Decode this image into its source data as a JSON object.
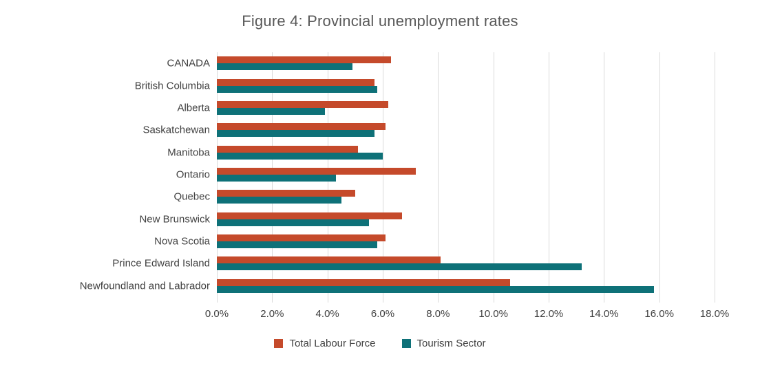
{
  "title": "Figure 4: Provincial unemployment rates",
  "chart_data": {
    "type": "bar",
    "orientation": "horizontal",
    "title": "Figure 4: Provincial unemployment rates",
    "categories": [
      "CANADA",
      "British Columbia",
      "Alberta",
      "Saskatchewan",
      "Manitoba",
      "Ontario",
      "Quebec",
      "New Brunswick",
      "Nova Scotia",
      "Prince Edward Island",
      "Newfoundland and Labrador"
    ],
    "series": [
      {
        "name": "Total Labour Force",
        "color": "#C54A2B",
        "values": [
          6.3,
          5.7,
          6.2,
          6.1,
          5.1,
          7.2,
          5.0,
          6.7,
          6.1,
          8.1,
          10.6
        ]
      },
      {
        "name": "Tourism Sector",
        "color": "#0E7178",
        "values": [
          4.9,
          5.8,
          3.9,
          5.7,
          6.0,
          4.3,
          4.5,
          5.5,
          5.8,
          13.2,
          15.8
        ]
      }
    ],
    "x_axis": {
      "min": 0,
      "max": 18,
      "tick_step": 2,
      "unit": "%",
      "tick_labels": [
        "0.0%",
        "2.0%",
        "4.0%",
        "6.0%",
        "8.0%",
        "10.0%",
        "12.0%",
        "14.0%",
        "16.0%",
        "18.0%"
      ]
    },
    "legend_position": "bottom",
    "grid": true,
    "colors": {
      "gridline": "#D9D9D9",
      "title_text": "#595959",
      "axis_text": "#404040",
      "background": "#FFFFFF"
    }
  }
}
